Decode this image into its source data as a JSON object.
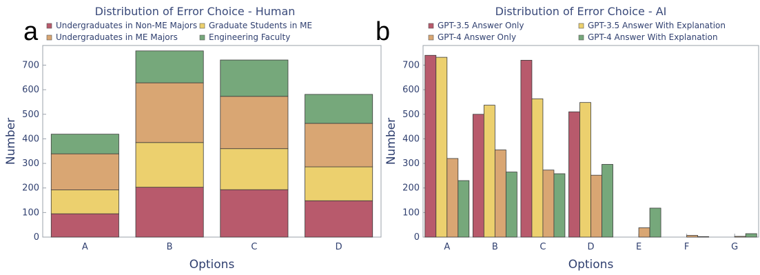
{
  "panel_labels": {
    "a": "a",
    "b": "b"
  },
  "chart_data": [
    {
      "type": "bar",
      "stacked": true,
      "title": "Distribution of Error Choice - Human",
      "xlabel": "Options",
      "ylabel": "Number",
      "ylim": [
        0,
        780
      ],
      "yticks": [
        0,
        100,
        200,
        300,
        400,
        500,
        600,
        700
      ],
      "categories": [
        "A",
        "B",
        "C",
        "D"
      ],
      "legend_position": "top",
      "series": [
        {
          "name": "Undergraduates in Non-ME Majors",
          "color": "#b85a6c",
          "values": [
            95,
            203,
            193,
            148
          ]
        },
        {
          "name": "Graduate Students in ME",
          "color": "#ecd06e",
          "values": [
            97,
            182,
            167,
            138
          ]
        },
        {
          "name": "Undergraduates in ME Majors",
          "color": "#d9a673",
          "values": [
            147,
            243,
            213,
            177
          ]
        },
        {
          "name": "Engineering Faculty",
          "color": "#76a87b",
          "values": [
            80,
            130,
            148,
            118
          ]
        }
      ],
      "legend_order": [
        0,
        1,
        2,
        3
      ]
    },
    {
      "type": "bar",
      "stacked": false,
      "title": "Distribution of Error Choice - AI",
      "xlabel": "Options",
      "ylabel": "Number",
      "ylim": [
        0,
        780
      ],
      "yticks": [
        0,
        100,
        200,
        300,
        400,
        500,
        600,
        700
      ],
      "categories": [
        "A",
        "B",
        "C",
        "D",
        "E",
        "F",
        "G"
      ],
      "legend_position": "top",
      "series": [
        {
          "name": "GPT-3.5 Answer Only",
          "color": "#b85a6c",
          "values": [
            740,
            500,
            720,
            510,
            0,
            0,
            0
          ]
        },
        {
          "name": "GPT-3.5 Answer With Explanation",
          "color": "#ecd06e",
          "values": [
            732,
            537,
            563,
            548,
            0,
            0,
            0
          ]
        },
        {
          "name": "GPT-4 Answer Only",
          "color": "#d9a673",
          "values": [
            320,
            355,
            273,
            252,
            38,
            7,
            3
          ]
        },
        {
          "name": "GPT-4 Answer With Explanation",
          "color": "#76a87b",
          "values": [
            230,
            265,
            258,
            296,
            118,
            2,
            14
          ]
        }
      ],
      "legend_order": [
        0,
        1,
        2,
        3
      ]
    }
  ]
}
